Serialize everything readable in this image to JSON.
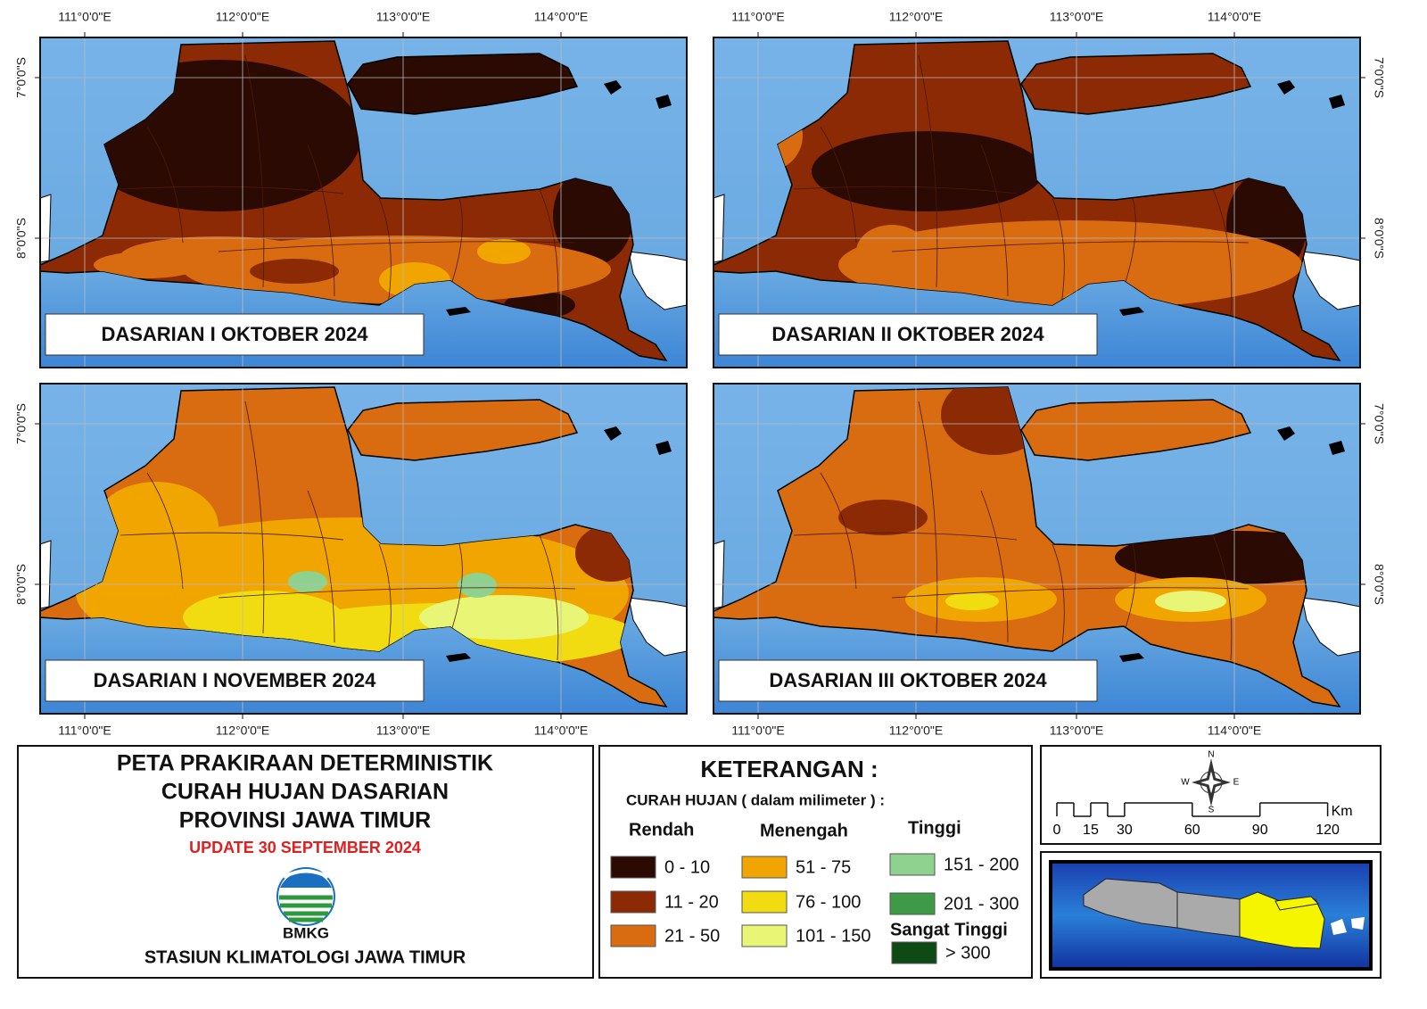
{
  "panels": [
    {
      "title": "DASARIAN I OKTOBER 2024"
    },
    {
      "title": "DASARIAN II OKTOBER 2024"
    },
    {
      "title": "DASARIAN I NOVEMBER 2024"
    },
    {
      "title": "DASARIAN III OKTOBER 2024"
    }
  ],
  "longitude_labels": [
    "111°0'0\"E",
    "112°0'0\"E",
    "113°0'0\"E",
    "114°0'0\"E"
  ],
  "latitude_labels": [
    "7°0'0\"S",
    "8°0'0\"S"
  ],
  "title_block": {
    "lines": [
      "PETA PRAKIRAAN DETERMINISTIK",
      "CURAH HUJAN DASARIAN",
      "PROVINSI JAWA TIMUR"
    ],
    "update": "UPDATE 30 SEPTEMBER 2024",
    "logo_text": "BMKG",
    "station": "STASIUN KLIMATOLOGI JAWA TIMUR"
  },
  "legend": {
    "heading": "KETERANGAN :",
    "subtitle": "CURAH HUJAN ( dalam milimeter ) :",
    "groups": [
      {
        "name": "Rendah",
        "items": [
          {
            "label": "0 - 10",
            "color": "#2b0a03"
          },
          {
            "label": "11 - 20",
            "color": "#8b2a05"
          },
          {
            "label": "21 - 50",
            "color": "#d96b10"
          }
        ]
      },
      {
        "name": "Menengah",
        "items": [
          {
            "label": "51 - 75",
            "color": "#f0a500"
          },
          {
            "label": "76 - 100",
            "color": "#f0dc10"
          },
          {
            "label": "101 - 150",
            "color": "#e8f575"
          }
        ]
      },
      {
        "name": "Tinggi",
        "items": [
          {
            "label": "151 - 200",
            "color": "#8fd18e"
          },
          {
            "label": "201 - 300",
            "color": "#3f9a48"
          }
        ]
      },
      {
        "name": "Sangat Tinggi",
        "items": [
          {
            "label": "> 300",
            "color": "#0d4a14"
          }
        ]
      }
    ]
  },
  "scale_bar": {
    "labels": [
      "0",
      "15",
      "30",
      "60",
      "90",
      "120"
    ],
    "unit": "Km"
  },
  "compass": {
    "n": "N",
    "e": "E",
    "s": "S",
    "w": "W"
  }
}
